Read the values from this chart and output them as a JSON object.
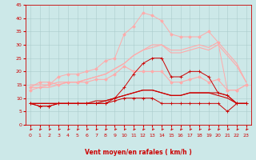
{
  "background_color": "#cce8e8",
  "grid_color": "#aacccc",
  "xlabel": "Vent moyen/en rafales ( km/h )",
  "xlabel_color": "#cc0000",
  "xlabel_fontsize": 5.5,
  "tick_color": "#cc0000",
  "tick_fontsize": 4.5,
  "xlim_min": -0.5,
  "xlim_max": 23.5,
  "ylim_min": 0,
  "ylim_max": 45,
  "yticks": [
    0,
    5,
    10,
    15,
    20,
    25,
    30,
    35,
    40,
    45
  ],
  "xticks": [
    0,
    1,
    2,
    3,
    4,
    5,
    6,
    7,
    8,
    9,
    10,
    11,
    12,
    13,
    14,
    15,
    16,
    17,
    18,
    19,
    20,
    21,
    22,
    23
  ],
  "lines": [
    {
      "x": [
        0,
        1,
        2,
        3,
        4,
        5,
        6,
        7,
        8,
        9,
        10,
        11,
        12,
        13,
        14,
        15,
        16,
        17,
        18,
        19,
        20,
        21,
        22,
        23
      ],
      "y": [
        8,
        7,
        7,
        8,
        8,
        8,
        8,
        8,
        8,
        9,
        10,
        10,
        10,
        10,
        8,
        8,
        8,
        8,
        8,
        8,
        8,
        5,
        8,
        8
      ],
      "color": "#cc0000",
      "linewidth": 0.7,
      "marker": "+",
      "markersize": 2.5,
      "zorder": 5
    },
    {
      "x": [
        0,
        1,
        2,
        3,
        4,
        5,
        6,
        7,
        8,
        9,
        10,
        11,
        12,
        13,
        14,
        15,
        16,
        17,
        18,
        19,
        20,
        21,
        22,
        23
      ],
      "y": [
        8,
        7,
        7,
        8,
        8,
        8,
        8,
        8,
        8,
        10,
        14,
        19,
        23,
        25,
        25,
        18,
        18,
        20,
        20,
        18,
        12,
        11,
        8,
        8
      ],
      "color": "#cc0000",
      "linewidth": 0.7,
      "marker": "+",
      "markersize": 2.5,
      "zorder": 5
    },
    {
      "x": [
        0,
        1,
        2,
        3,
        4,
        5,
        6,
        7,
        8,
        9,
        10,
        11,
        12,
        13,
        14,
        15,
        16,
        17,
        18,
        19,
        20,
        21,
        22,
        23
      ],
      "y": [
        8,
        8,
        8,
        8,
        8,
        8,
        8,
        9,
        9,
        10,
        11,
        12,
        13,
        13,
        12,
        11,
        11,
        12,
        12,
        12,
        12,
        11,
        8,
        8
      ],
      "color": "#cc0000",
      "linewidth": 0.8,
      "marker": null,
      "markersize": 0,
      "zorder": 4
    },
    {
      "x": [
        0,
        1,
        2,
        3,
        4,
        5,
        6,
        7,
        8,
        9,
        10,
        11,
        12,
        13,
        14,
        15,
        16,
        17,
        18,
        19,
        20,
        21,
        22,
        23
      ],
      "y": [
        8,
        8,
        8,
        8,
        8,
        8,
        8,
        8,
        9,
        10,
        11,
        12,
        13,
        13,
        12,
        11,
        11,
        12,
        12,
        12,
        11,
        10,
        8,
        8
      ],
      "color": "#cc0000",
      "linewidth": 0.8,
      "marker": null,
      "markersize": 0,
      "zorder": 4
    },
    {
      "x": [
        0,
        1,
        2,
        3,
        4,
        5,
        6,
        7,
        8,
        9,
        10,
        11,
        12,
        13,
        14,
        15,
        16,
        17,
        18,
        19,
        20,
        21,
        22,
        23
      ],
      "y": [
        14,
        16,
        16,
        15,
        16,
        16,
        16,
        17,
        17,
        19,
        22,
        20,
        20,
        20,
        20,
        16,
        16,
        17,
        18,
        16,
        17,
        13,
        13,
        15
      ],
      "color": "#ffaaaa",
      "linewidth": 0.8,
      "marker": "D",
      "markersize": 1.8,
      "zorder": 3
    },
    {
      "x": [
        0,
        1,
        2,
        3,
        4,
        5,
        6,
        7,
        8,
        9,
        10,
        11,
        12,
        13,
        14,
        15,
        16,
        17,
        18,
        19,
        20,
        21,
        22,
        23
      ],
      "y": [
        14,
        14,
        14,
        15,
        16,
        16,
        17,
        18,
        19,
        21,
        23,
        26,
        28,
        29,
        30,
        27,
        27,
        28,
        29,
        28,
        30,
        26,
        22,
        16
      ],
      "color": "#ffaaaa",
      "linewidth": 0.8,
      "marker": null,
      "markersize": 0,
      "zorder": 3
    },
    {
      "x": [
        0,
        1,
        2,
        3,
        4,
        5,
        6,
        7,
        8,
        9,
        10,
        11,
        12,
        13,
        14,
        15,
        16,
        17,
        18,
        19,
        20,
        21,
        22,
        23
      ],
      "y": [
        15,
        15,
        15,
        16,
        16,
        16,
        17,
        18,
        19,
        21,
        23,
        26,
        28,
        30,
        30,
        28,
        28,
        29,
        30,
        29,
        31,
        27,
        23,
        16
      ],
      "color": "#ffaaaa",
      "linewidth": 0.8,
      "marker": null,
      "markersize": 0,
      "zorder": 3
    },
    {
      "x": [
        0,
        1,
        2,
        3,
        4,
        5,
        6,
        7,
        8,
        9,
        10,
        11,
        12,
        13,
        14,
        15,
        16,
        17,
        18,
        19,
        20,
        21,
        22,
        23
      ],
      "y": [
        13,
        14,
        15,
        18,
        19,
        19,
        20,
        21,
        24,
        25,
        34,
        37,
        42,
        41,
        39,
        34,
        33,
        33,
        33,
        35,
        31,
        13,
        13,
        15
      ],
      "color": "#ffaaaa",
      "linewidth": 0.7,
      "marker": "D",
      "markersize": 1.8,
      "zorder": 3
    }
  ],
  "arrow_color": "#cc0000"
}
